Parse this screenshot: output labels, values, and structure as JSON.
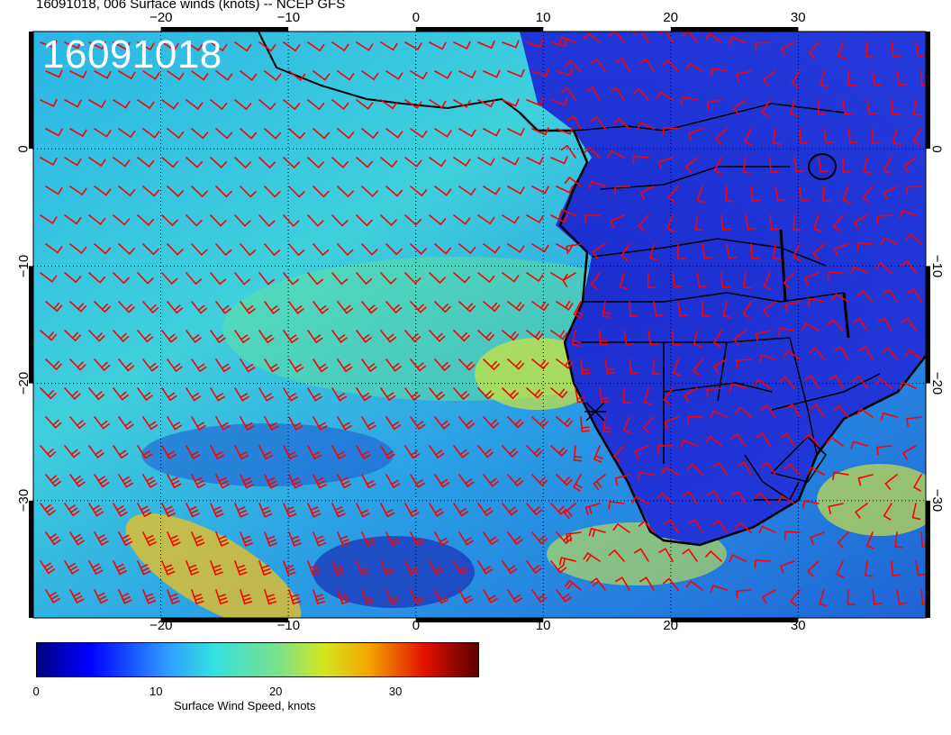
{
  "header": {
    "title": "16091018, 006 Surface winds (knots) -- NCEP GFS"
  },
  "map": {
    "stamp": "16091018",
    "lon_labels": [
      "−20",
      "−10",
      "0",
      "10",
      "20",
      "30"
    ],
    "lat_labels": [
      "0",
      "−10",
      "−20",
      "−30"
    ],
    "lon_values": [
      -20,
      -10,
      0,
      10,
      20,
      30
    ],
    "lat_values": [
      0,
      -10,
      -20,
      -30
    ],
    "lon_range": [
      -30,
      40
    ],
    "lat_range": [
      -40,
      10
    ],
    "colors": {
      "land_outline": "#000000",
      "wind_barb": "#ff0000",
      "frame": "#000000"
    }
  },
  "colorbar": {
    "tick_labels": [
      "0",
      "10",
      "20",
      "30"
    ],
    "tick_values": [
      0,
      10,
      20,
      30
    ],
    "range": [
      0,
      37
    ],
    "label": "Surface Wind Speed, knots",
    "colormap": "jet"
  }
}
